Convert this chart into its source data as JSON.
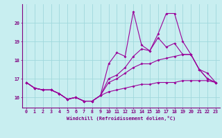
{
  "xlabel": "Windchill (Refroidissement éolien,°C)",
  "bg_color": "#c8eef0",
  "grid_color": "#a0d8dc",
  "line_color": "#990099",
  "x": [
    0,
    1,
    2,
    3,
    4,
    5,
    6,
    7,
    8,
    9,
    10,
    11,
    12,
    13,
    14,
    15,
    16,
    17,
    18,
    19,
    20,
    21,
    22,
    23
  ],
  "line1": [
    16.8,
    16.5,
    16.4,
    16.4,
    16.2,
    15.9,
    16.0,
    15.8,
    15.8,
    16.1,
    17.8,
    18.4,
    18.2,
    20.6,
    18.8,
    18.5,
    19.4,
    20.5,
    20.5,
    19.0,
    18.3,
    17.5,
    17.3,
    16.8
  ],
  "line2": [
    16.8,
    16.5,
    16.4,
    16.4,
    16.2,
    15.9,
    16.0,
    15.8,
    15.8,
    16.1,
    17.0,
    17.2,
    17.6,
    18.2,
    18.6,
    18.5,
    19.2,
    18.7,
    18.9,
    18.3,
    18.3,
    17.5,
    17.0,
    16.8
  ],
  "line3": [
    16.8,
    16.5,
    16.4,
    16.4,
    16.2,
    15.9,
    16.0,
    15.8,
    15.8,
    16.1,
    16.8,
    17.0,
    17.3,
    17.6,
    17.8,
    17.8,
    18.0,
    18.1,
    18.2,
    18.3,
    18.3,
    17.5,
    17.0,
    16.8
  ],
  "line4": [
    16.8,
    16.5,
    16.4,
    16.4,
    16.2,
    15.9,
    16.0,
    15.8,
    15.8,
    16.1,
    16.3,
    16.4,
    16.5,
    16.6,
    16.7,
    16.7,
    16.8,
    16.8,
    16.8,
    16.9,
    16.9,
    16.9,
    16.9,
    16.8
  ],
  "ylim": [
    15.45,
    21.0
  ],
  "yticks": [
    16,
    17,
    18,
    19,
    20
  ],
  "xticks": [
    0,
    1,
    2,
    3,
    4,
    5,
    6,
    7,
    8,
    9,
    10,
    11,
    12,
    13,
    14,
    15,
    16,
    17,
    18,
    19,
    20,
    21,
    22,
    23
  ]
}
